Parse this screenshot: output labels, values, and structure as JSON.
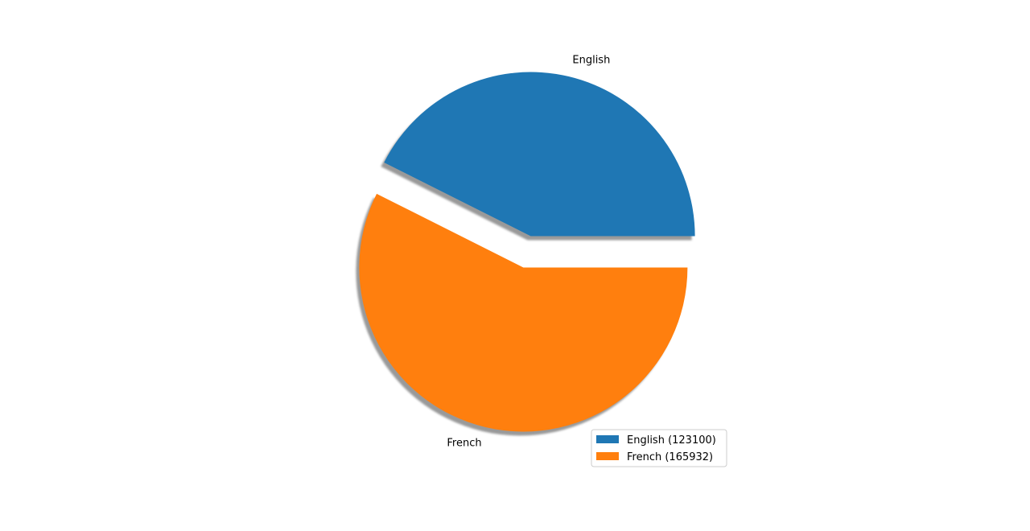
{
  "chart_data": {
    "type": "pie",
    "categories": [
      "English",
      "French"
    ],
    "values": [
      123100,
      165932
    ],
    "colors": [
      "#1f77b4",
      "#ff7f0e"
    ],
    "legend": {
      "entries": [
        "English (123100)",
        "French (165932)"
      ],
      "placement": "lower-right"
    },
    "shadow": true,
    "exploded": true
  }
}
